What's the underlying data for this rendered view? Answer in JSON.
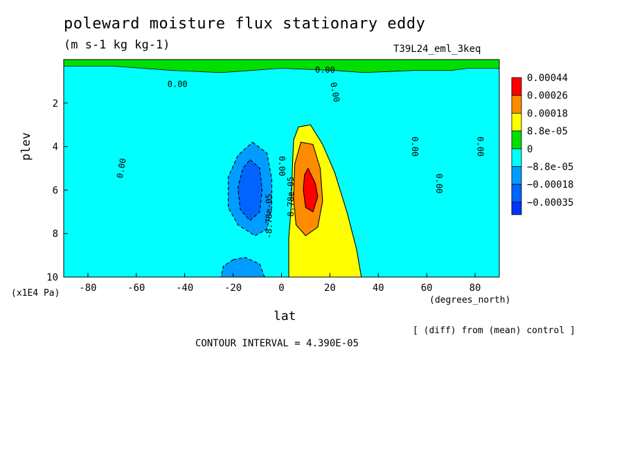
{
  "title": "poleward moisture flux stationary eddy",
  "units": "(m s-1 kg kg-1)",
  "run_id": "T39L24_eml_3keq",
  "note": "[ (diff) from (mean) control ]",
  "contour_interval": "CONTOUR INTERVAL = 4.390E-05",
  "chart_data": {
    "type": "heatmap",
    "xlabel": "lat",
    "xunits": "(degrees_north)",
    "ylabel": "plev",
    "yunits": "(x1E4 Pa)",
    "xlim": [
      -90,
      90
    ],
    "ylim": [
      10,
      0
    ],
    "x_ticks": [
      {
        "value": -80,
        "label": "-80"
      },
      {
        "value": -60,
        "label": "-60"
      },
      {
        "value": -40,
        "label": "-40"
      },
      {
        "value": -20,
        "label": "-20"
      },
      {
        "value": 0,
        "label": "0"
      },
      {
        "value": 20,
        "label": "20"
      },
      {
        "value": 40,
        "label": "40"
      },
      {
        "value": 60,
        "label": "60"
      },
      {
        "value": 80,
        "label": "80"
      }
    ],
    "y_ticks": [
      {
        "value": 2,
        "label": "2"
      },
      {
        "value": 4,
        "label": "4"
      },
      {
        "value": 6,
        "label": "6"
      },
      {
        "value": 8,
        "label": "8"
      },
      {
        "value": 10,
        "label": "10"
      }
    ],
    "colorbar": [
      {
        "label": "0.00044",
        "color": "#ff0000"
      },
      {
        "label": "0.00026",
        "color": "#ff8c00"
      },
      {
        "label": "0.00018",
        "color": "#ffff00"
      },
      {
        "label": "8.8e-05",
        "color": "#00e000"
      },
      {
        "label": "0",
        "color": "#00ffff"
      },
      {
        "label": "−8.8e-05",
        "color": "#009cff"
      },
      {
        "label": "−0.00018",
        "color": "#0064ff"
      },
      {
        "label": "−0.00035",
        "color": null
      }
    ],
    "regions": [
      {
        "kind": "negative",
        "level": 1,
        "color": "#00ffff",
        "polygon": [
          [
            -90,
            0.3
          ],
          [
            -70,
            0.3
          ],
          [
            -45,
            0.5
          ],
          [
            -25,
            0.6
          ],
          [
            0,
            0.4
          ],
          [
            22,
            0.5
          ],
          [
            34,
            0.6
          ],
          [
            55,
            0.5
          ],
          [
            70,
            0.5
          ],
          [
            77,
            0.4
          ],
          [
            90,
            0.4
          ],
          [
            90,
            10
          ],
          [
            -90,
            10
          ]
        ]
      },
      {
        "kind": "positive",
        "level": 1,
        "color": "#00e000",
        "polygon": [
          [
            -90,
            0
          ],
          [
            90,
            0
          ],
          [
            90,
            10
          ],
          [
            -90,
            10
          ]
        ]
      },
      {
        "kind": "positive",
        "level": 2,
        "color": "#ffff00",
        "polygon": [
          [
            7,
            3.1
          ],
          [
            12,
            3.0
          ],
          [
            17,
            3.9
          ],
          [
            22,
            5.2
          ],
          [
            27,
            7.0
          ],
          [
            31,
            8.7
          ],
          [
            33,
            10
          ],
          [
            3,
            10
          ],
          [
            3,
            8.2
          ],
          [
            4,
            6.8
          ],
          [
            4.5,
            5.0
          ],
          [
            5,
            3.7
          ]
        ]
      },
      {
        "kind": "positive",
        "level": 3,
        "color": "#ff8c00",
        "polygon": [
          [
            8,
            3.8
          ],
          [
            13,
            3.9
          ],
          [
            16,
            5.0
          ],
          [
            17,
            6.5
          ],
          [
            15,
            7.7
          ],
          [
            10,
            8.1
          ],
          [
            6,
            7.6
          ],
          [
            5,
            6.4
          ],
          [
            5.5,
            4.8
          ]
        ]
      },
      {
        "kind": "positive",
        "level": 4,
        "color": "#ff0000",
        "polygon": [
          [
            11,
            5.0
          ],
          [
            14,
            5.7
          ],
          [
            15,
            6.3
          ],
          [
            13,
            7.0
          ],
          [
            10,
            6.8
          ],
          [
            9,
            6.0
          ],
          [
            9.5,
            5.3
          ]
        ]
      },
      {
        "kind": "negative",
        "level": 2,
        "color": "#009cff",
        "polygon": [
          [
            -12,
            3.8
          ],
          [
            -6,
            4.3
          ],
          [
            -4,
            5.5
          ],
          [
            -4,
            6.8
          ],
          [
            -6,
            7.8
          ],
          [
            -11,
            8.1
          ],
          [
            -18,
            7.6
          ],
          [
            -22,
            6.8
          ],
          [
            -22,
            5.4
          ],
          [
            -18,
            4.4
          ]
        ]
      },
      {
        "kind": "negative",
        "level": 2,
        "color": "#009cff",
        "polygon": [
          [
            -20,
            9.2
          ],
          [
            -15,
            9.1
          ],
          [
            -9,
            9.4
          ],
          [
            -7,
            10
          ],
          [
            -25,
            10
          ],
          [
            -24,
            9.5
          ]
        ]
      },
      {
        "kind": "negative",
        "level": 3,
        "color": "#0064ff",
        "polygon": [
          [
            -13,
            4.6
          ],
          [
            -9,
            5.0
          ],
          [
            -8,
            6.0
          ],
          [
            -9,
            7.0
          ],
          [
            -13,
            7.4
          ],
          [
            -17,
            6.9
          ],
          [
            -18,
            5.9
          ],
          [
            -16,
            5.0
          ]
        ]
      }
    ],
    "contour_labels": [
      {
        "text": "0.00",
        "lat": 18,
        "p": 0.5,
        "rotation": 0
      },
      {
        "text": "0.00",
        "lat": -43,
        "p": 1.15,
        "rotation": 0
      },
      {
        "text": "0.00",
        "lat": 22,
        "p": 1.5,
        "rotation": 80
      },
      {
        "text": "0.00",
        "lat": -66,
        "p": 5.0,
        "rotation": -80
      },
      {
        "text": "0.00",
        "lat": 55,
        "p": 4.0,
        "rotation": 90
      },
      {
        "text": "0.00",
        "lat": 65,
        "p": 5.7,
        "rotation": 90
      },
      {
        "text": "0.00",
        "lat": 82,
        "p": 4.0,
        "rotation": 90
      },
      {
        "text": "0.00",
        "lat": 0,
        "p": 4.9,
        "rotation": 90
      },
      {
        "text": "-8.78e-05",
        "lat": -5,
        "p": 7.2,
        "rotation": -90
      },
      {
        "text": "8.78e-05",
        "lat": 4,
        "p": 6.3,
        "rotation": -90
      }
    ]
  }
}
